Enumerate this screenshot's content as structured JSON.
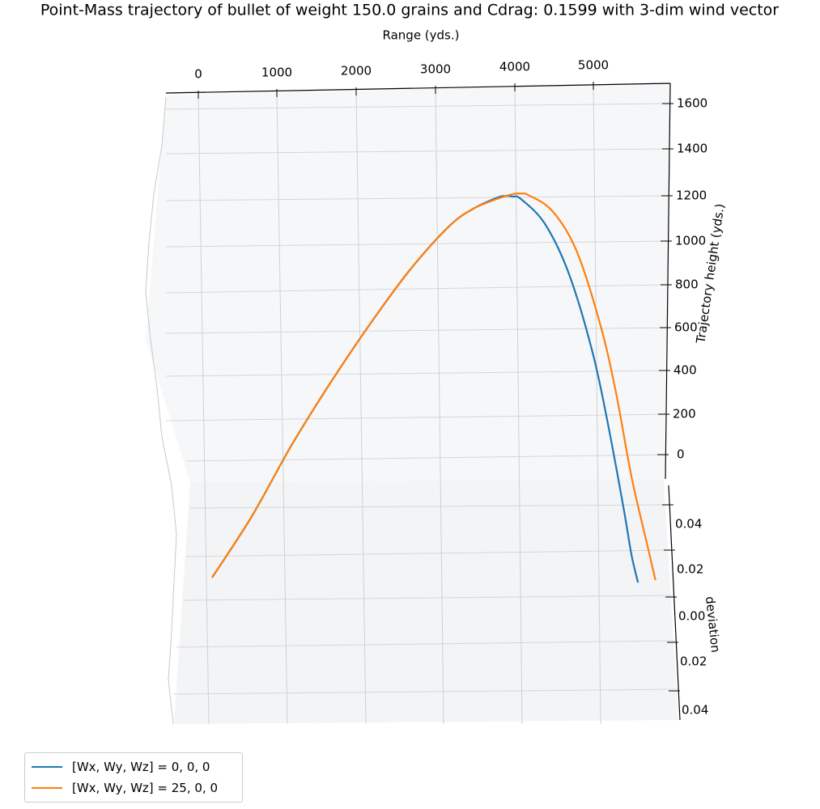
{
  "chart_data": {
    "type": "line",
    "title": "Point-Mass trajectory of bullet of weight 150.0 grains and Cdrag: 0.1599 with 3-dim wind vector",
    "x_axis": {
      "label": "Range (yds.)",
      "ticks": [
        "0",
        "1000",
        "2000",
        "3000",
        "4000",
        "5000"
      ]
    },
    "z_axis": {
      "label": "Trajectory height (yds.)",
      "ticks": [
        "1600",
        "1400",
        "1200",
        "1000",
        "800",
        "600",
        "400",
        "200",
        "0"
      ]
    },
    "y_axis": {
      "label": "deviation",
      "ticks": [
        "0.04",
        "0.02",
        "0.00",
        "0.02",
        "0.04"
      ]
    },
    "series": [
      {
        "name": "[Wx, Wy, Wz] = 0, 0, 0",
        "color": "#1f77b4",
        "range": [
          0,
          500,
          1000,
          1500,
          2000,
          2500,
          3000,
          3300,
          3600,
          3700,
          3800,
          3900,
          4200,
          4500,
          4800,
          5000,
          5200,
          5300,
          5380
        ],
        "height": [
          -510,
          -260,
          30,
          290,
          530,
          750,
          930,
          1000,
          1045,
          1052,
          1050,
          1040,
          940,
          740,
          420,
          120,
          -230,
          -420,
          -530
        ]
      },
      {
        "name": "[Wx, Wy, Wz] = 25, 0, 0",
        "color": "#ff7f0e",
        "range": [
          0,
          500,
          1000,
          1500,
          2000,
          2500,
          3000,
          3300,
          3600,
          3800,
          3900,
          4000,
          4300,
          4600,
          4900,
          5100,
          5300,
          5500,
          5600
        ],
        "height": [
          -510,
          -260,
          30,
          290,
          530,
          750,
          930,
          1000,
          1040,
          1060,
          1062,
          1055,
          990,
          830,
          530,
          250,
          -100,
          -380,
          -520
        ]
      }
    ],
    "legend": {
      "position": "bottom-left",
      "entries": [
        "[Wx, Wy, Wz] = 0, 0, 0",
        "[Wx, Wy, Wz] = 25, 0, 0"
      ]
    }
  }
}
